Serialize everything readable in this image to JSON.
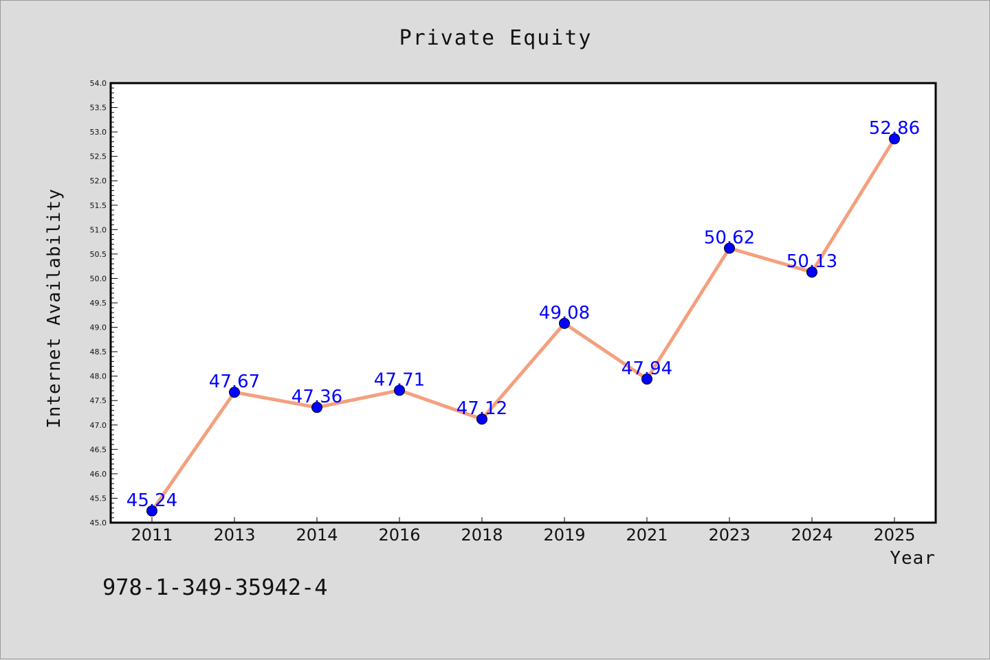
{
  "chart_data": {
    "type": "line",
    "title": "Private Equity",
    "xlabel": "Year",
    "ylabel": "Internet Availability",
    "categories": [
      "2011",
      "2013",
      "2014",
      "2016",
      "2018",
      "2019",
      "2021",
      "2023",
      "2024",
      "2025"
    ],
    "series": [
      {
        "values": [
          45.24,
          47.67,
          47.36,
          47.71,
          47.12,
          49.08,
          47.94,
          50.62,
          50.13,
          52.86
        ],
        "data_labels": [
          "45.24",
          "47.67",
          "47.36",
          "47.71",
          "47.12",
          "49.08",
          "47.94",
          "50.62",
          "50.13",
          "52.86"
        ],
        "line_color": "#f4a07e",
        "marker_color": "#0000ff"
      }
    ],
    "ylim": [
      45.0,
      54.0
    ],
    "yticks": [
      "45.0",
      "45.5",
      "46.0",
      "46.5",
      "47.0",
      "47.5",
      "48.0",
      "48.5",
      "49.0",
      "49.5",
      "50.0",
      "50.5",
      "51.0",
      "51.5",
      "52.0",
      "52.5",
      "53.0",
      "53.5",
      "54.0"
    ],
    "grid": false,
    "legend": "none",
    "background_color": "#dcdcdc",
    "plot_background_color": "#ffffff"
  },
  "footer": {
    "isbn": "978-1-349-35942-4"
  }
}
